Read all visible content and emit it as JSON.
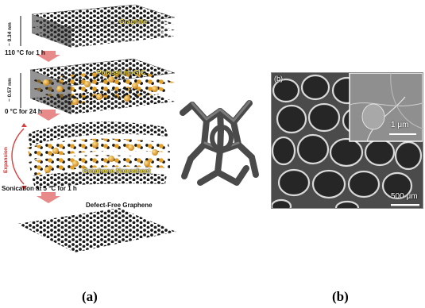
{
  "panel_a": {
    "stages": {
      "graphite": "Graphite",
      "gic": "Potassium-GIC",
      "nanosheet": "Graphene Nanosheet",
      "defect_free": "Defect-Free  Graphene"
    },
    "steps": {
      "step1": "110 °C for 1 h",
      "step2": "0 °C for 24 h",
      "step3": "Sonication at 5 °C for 1 h"
    },
    "spacing": {
      "graphite": "~ 0.34 nm",
      "gic": "~ 0.57 nm"
    },
    "expansion": "Expansion",
    "caption": "(a)"
  },
  "panel_b": {
    "subpanel_letter": "(b)",
    "scale_small": "1 μm",
    "scale_large": "500 μm",
    "caption": "(b)"
  },
  "colors": {
    "atom": "#1a1a1a",
    "potassium": "#e3a12a",
    "arrow": "#e88a8a",
    "label": "#f5e24a"
  }
}
